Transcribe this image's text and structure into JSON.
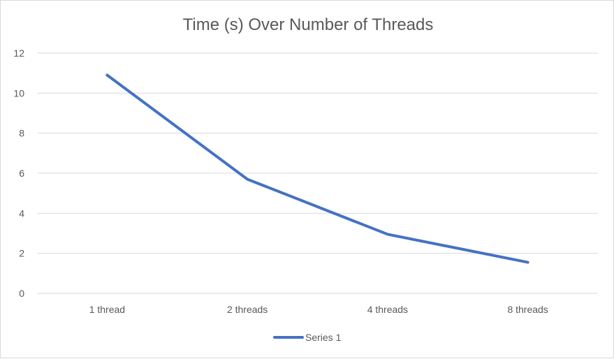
{
  "chart_data": {
    "type": "line",
    "title": "Time (s) Over Number of Threads",
    "xlabel": "",
    "ylabel": "",
    "categories": [
      "1 thread",
      "2 threads",
      "4 threads",
      "8 threads"
    ],
    "series": [
      {
        "name": "Series 1",
        "values": [
          10.9,
          5.7,
          2.95,
          1.55
        ],
        "color": "#4472C4"
      }
    ],
    "ylim": [
      0,
      12
    ],
    "yticks": [
      0,
      2,
      4,
      6,
      8,
      10,
      12
    ],
    "grid": true,
    "legend": "bottom",
    "colors": {
      "grid": "#d9d9d9",
      "text": "#595959"
    }
  }
}
